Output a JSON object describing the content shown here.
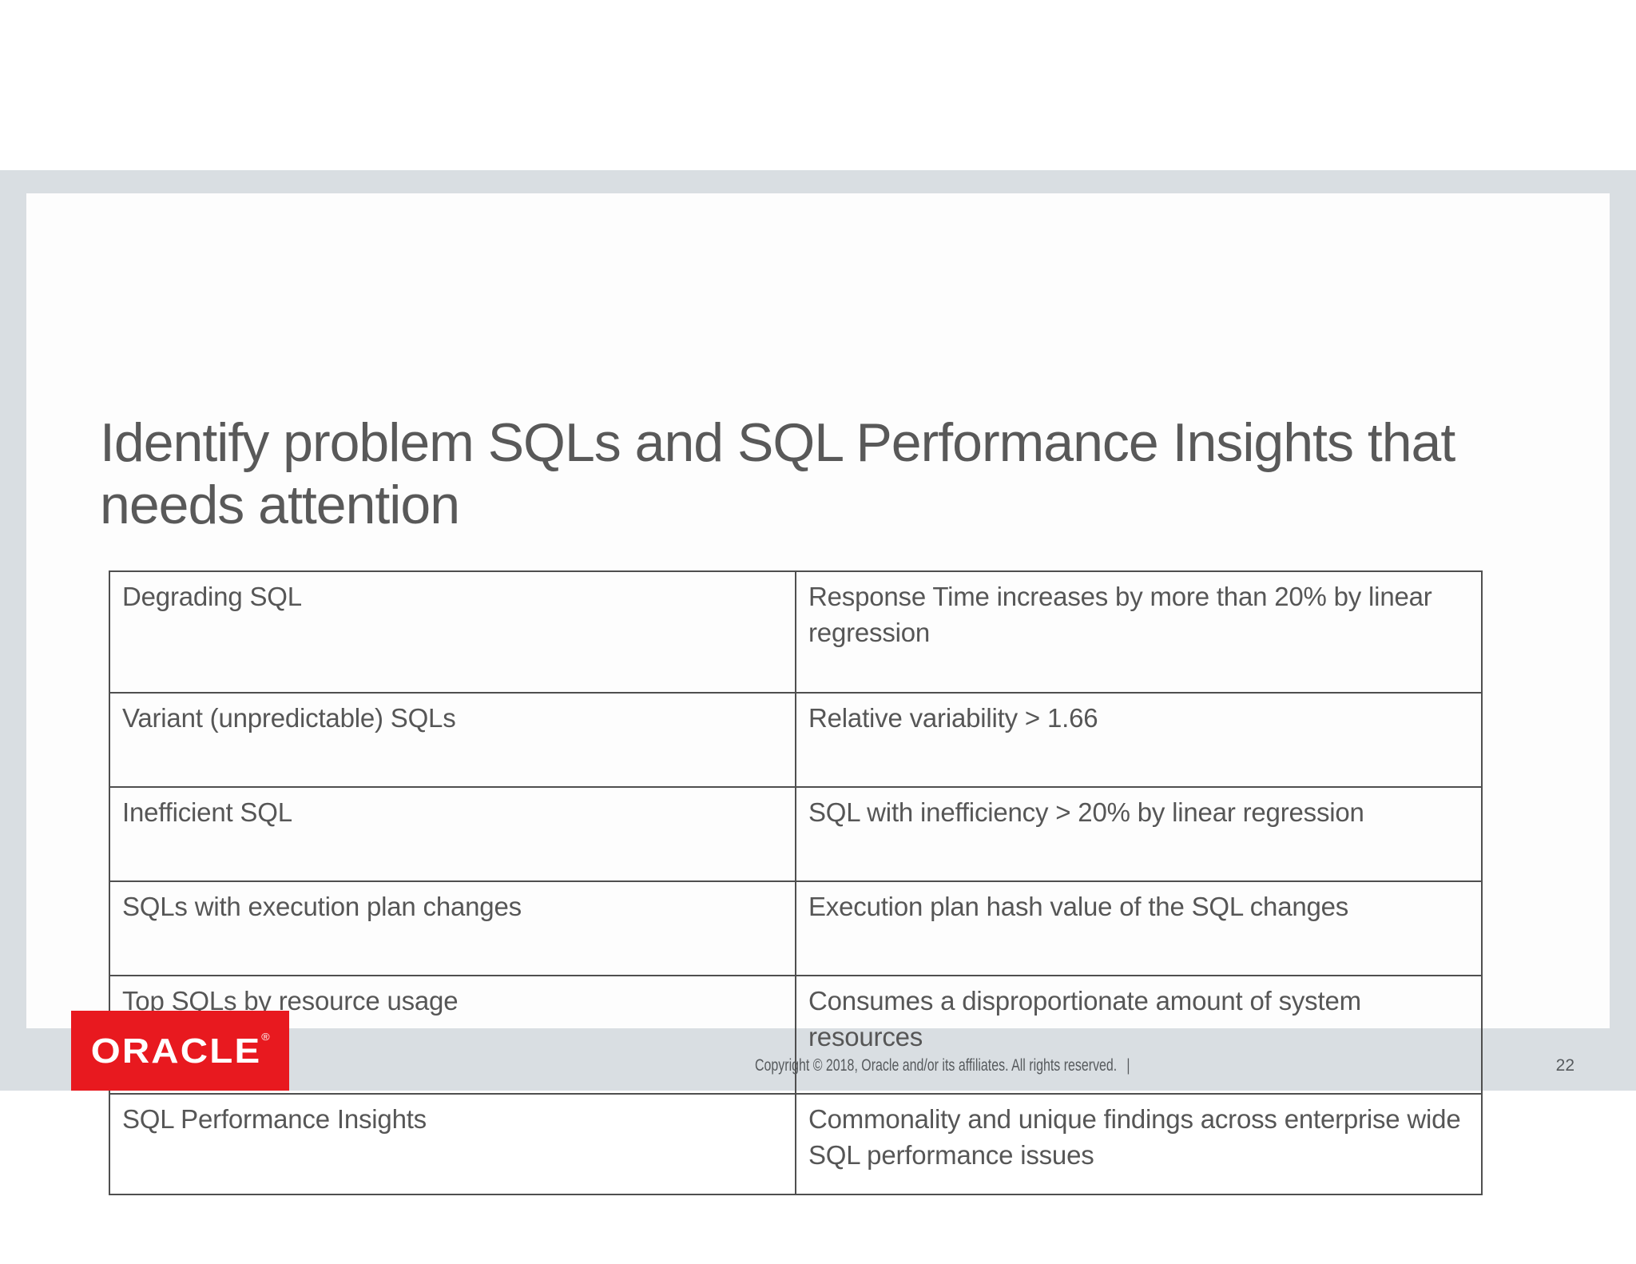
{
  "slide": {
    "title_lines": [
      "Identify problem SQLs and SQL Performance Insights that",
      "needs attention"
    ],
    "table": {
      "rows": [
        {
          "category": "Degrading SQL",
          "criteria": "Response Time increases by more than 20% by linear regression"
        },
        {
          "category": "Variant (unpredictable) SQLs",
          "criteria": "Relative variability > 1.66"
        },
        {
          "category": "Inefficient SQL",
          "criteria": "SQL with inefficiency > 20% by linear regression"
        },
        {
          "category": "SQLs with execution plan changes",
          "criteria": "Execution plan hash value of the SQL changes"
        },
        {
          "category": "Top SQLs by resource usage",
          "criteria": "Consumes a disproportionate amount of system resources"
        },
        {
          "category": "SQL Performance Insights",
          "criteria": "Commonality and unique findings across enterprise wide SQL performance issues"
        }
      ]
    }
  },
  "footer": {
    "logo": {
      "brand": "ORACLE",
      "registered_mark": "®"
    },
    "copyright": "Copyright © 2018, Oracle and/or its affiliates. All rights reserved.",
    "separator": "|",
    "page_number": "22"
  },
  "colors": {
    "oracle_red": "#e8191f",
    "surround_band": "#d9dee2",
    "title_text": "#595959",
    "body_text": "#565656",
    "table_border": "#4f4f4f"
  }
}
